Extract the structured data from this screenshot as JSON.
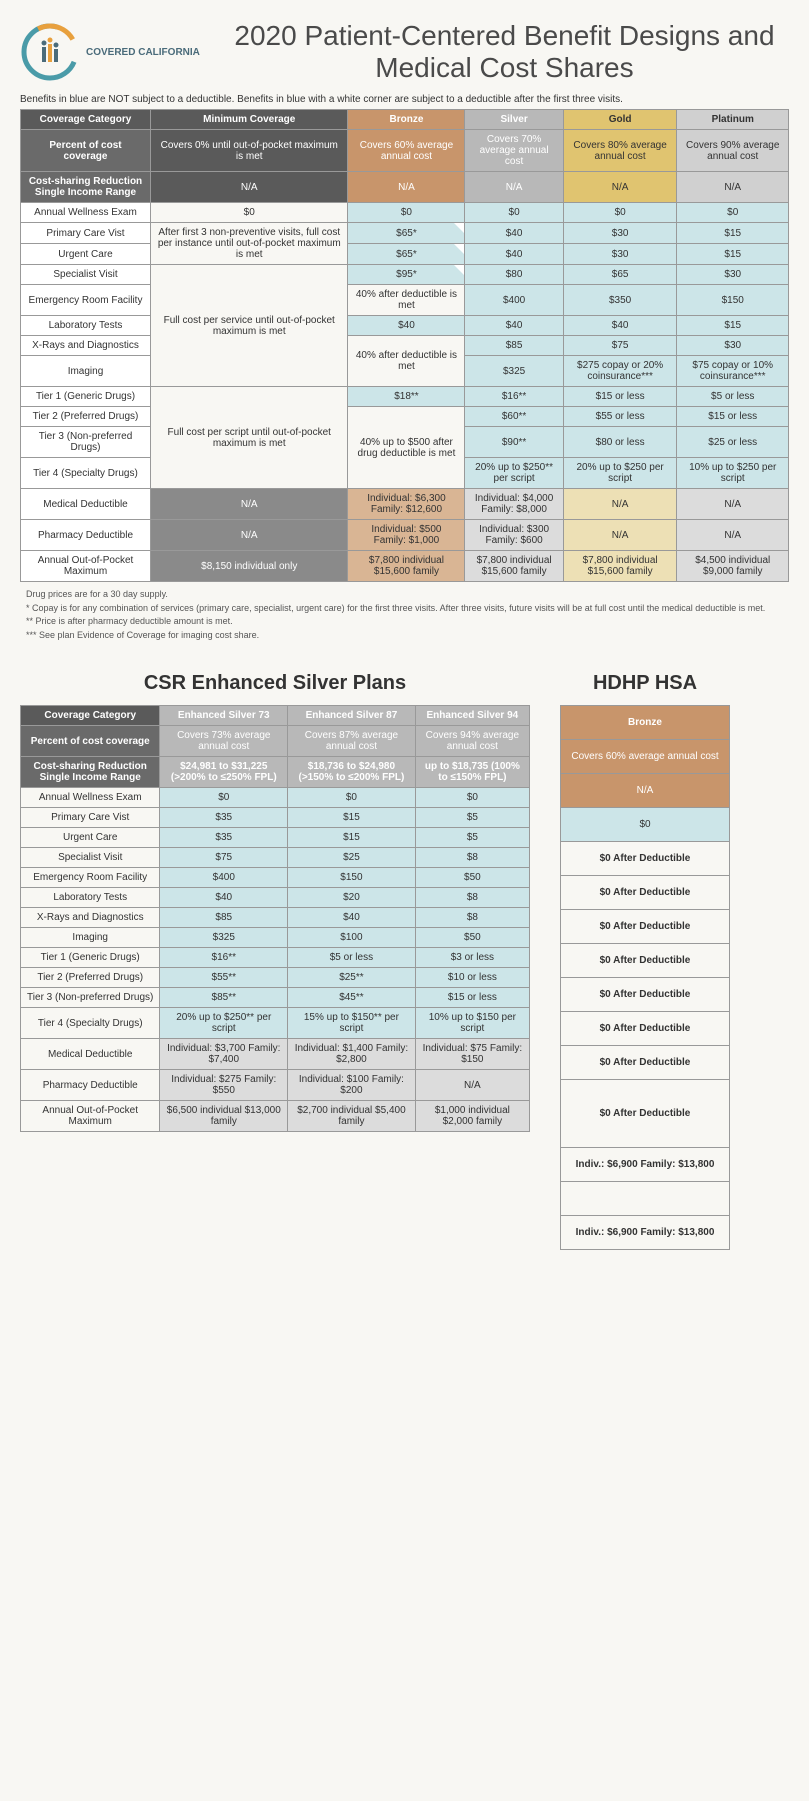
{
  "title": "2020 Patient-Centered Benefit Designs and Medical Cost Shares",
  "logo_label": "COVERED CALIFORNIA",
  "disclaimer": "Benefits in blue are NOT subject to a deductible. Benefits in blue with a white corner are subject to a deductible after the first three visits.",
  "main": {
    "headers": [
      "Coverage Category",
      "Minimum Coverage",
      "Bronze",
      "Silver",
      "Gold",
      "Platinum"
    ],
    "pct_label": "Percent of cost coverage",
    "pct": [
      "Covers 0% until out-of-pocket maximum is met",
      "Covers 60% average annual cost",
      "Covers 70% average annual cost",
      "Covers 80% average annual cost",
      "Covers 90% average annual cost"
    ],
    "csr_label": "Cost-sharing Reduction Single Income Range",
    "csr": [
      "N/A",
      "N/A",
      "N/A",
      "N/A",
      "N/A"
    ],
    "rows": [
      {
        "label": "Annual Wellness Exam",
        "min": "$0",
        "b": "$0",
        "s": "$0",
        "g": "$0",
        "p": "$0",
        "b_blue": true,
        "s_blue": true,
        "g_blue": true,
        "p_blue": true
      },
      {
        "label": "Primary Care Vist",
        "min_rowspan": 2,
        "min": "After first 3 non-preventive visits, full cost per instance until out-of-pocket maximum is met",
        "b": "$65*",
        "s": "$40",
        "g": "$30",
        "p": "$15",
        "b_blue": true,
        "b_corner": true,
        "s_blue": true,
        "g_blue": true,
        "p_blue": true
      },
      {
        "label": "Urgent Care",
        "b": "$65*",
        "s": "$40",
        "g": "$30",
        "p": "$15",
        "b_blue": true,
        "b_corner": true,
        "s_blue": true,
        "g_blue": true,
        "p_blue": true
      },
      {
        "label": "Specialist Visit",
        "min_rowspan": 5,
        "min": "Full cost per service until out-of-pocket maximum is met",
        "b": "$95*",
        "s": "$80",
        "g": "$65",
        "p": "$30",
        "b_blue": true,
        "b_corner": true,
        "s_blue": true,
        "g_blue": true,
        "p_blue": true
      },
      {
        "label": "Emergency Room Facility",
        "b_rowspan": 1,
        "b": "40% after deductible is met",
        "s": "$400",
        "g": "$350",
        "p": "$150",
        "s_blue": true,
        "g_blue": true,
        "p_blue": true
      },
      {
        "label": "Laboratory Tests",
        "b": "$40",
        "s": "$40",
        "g": "$40",
        "p": "$15",
        "b_blue": true,
        "s_blue": true,
        "g_blue": true,
        "p_blue": true
      },
      {
        "label": "X-Rays and Diagnostics",
        "b_rowspan": 2,
        "b": "40% after deductible is met",
        "s": "$85",
        "g": "$75",
        "p": "$30",
        "s_blue": true,
        "g_blue": true,
        "p_blue": true
      },
      {
        "label": "Imaging",
        "s": "$325",
        "g": "$275 copay or 20% coinsurance***",
        "p": "$75 copay or 10% coinsurance***",
        "s_blue": true,
        "g_blue": true,
        "p_blue": true
      },
      {
        "label": "Tier 1 (Generic Drugs)",
        "min_rowspan": 4,
        "min": "Full cost per script until out-of-pocket maximum is met",
        "b": "$18**",
        "s": "$16**",
        "g": "$15 or less",
        "p": "$5 or less",
        "b_blue": true,
        "s_blue": true,
        "g_blue": true,
        "p_blue": true
      },
      {
        "label": "Tier 2 (Preferred Drugs)",
        "b_rowspan": 3,
        "b": "40% up to $500 after drug deductible is met",
        "s": "$60**",
        "g": "$55 or less",
        "p": "$15 or less",
        "s_blue": true,
        "g_blue": true,
        "p_blue": true
      },
      {
        "label": "Tier 3 (Non-preferred Drugs)",
        "s": "$90**",
        "g": "$80 or less",
        "p": "$25 or less",
        "s_blue": true,
        "g_blue": true,
        "p_blue": true
      },
      {
        "label": "Tier 4 (Specialty Drugs)",
        "s": "20% up to $250** per script",
        "g": "20% up to $250 per script",
        "p": "10% up to $250 per script",
        "s_blue": true,
        "g_blue": true,
        "p_blue": true
      },
      {
        "label": "Medical Deductible",
        "min": "N/A",
        "min_gray": true,
        "b": "Individual: $6,300 Family: $12,600",
        "s": "Individual: $4,000 Family: $8,000",
        "g": "N/A",
        "p": "N/A",
        "b_bronze": true,
        "s_silver": true,
        "g_gold": true,
        "p_silver": true
      },
      {
        "label": "Pharmacy Deductible",
        "min": "N/A",
        "min_gray": true,
        "b": "Individual: $500 Family: $1,000",
        "s": "Individual: $300 Family: $600",
        "g": "N/A",
        "p": "N/A",
        "b_bronze": true,
        "s_silver": true,
        "g_gold": true,
        "p_silver": true
      },
      {
        "label": "Annual Out-of-Pocket Maximum",
        "min": "$8,150 individual only",
        "min_gray": true,
        "b": "$7,800 individual $15,600 family",
        "s": "$7,800 individual $15,600 family",
        "g": "$7,800 individual $15,600 family",
        "p": "$4,500 individual $9,000 family",
        "b_bronze": true,
        "s_silver": true,
        "g_gold": true,
        "p_silver": true
      }
    ]
  },
  "footnotes": [
    "Drug prices are for a 30 day supply.",
    "* Copay is for any combination of services (primary care, specialist, urgent care) for the first three visits. After three visits, future visits will be at full cost until the medical deductible is met.",
    "** Price is after pharmacy deductible amount is met.",
    "*** See plan Evidence of Coverage for imaging cost share."
  ],
  "csr": {
    "title": "CSR Enhanced Silver Plans",
    "headers": [
      "Coverage Category",
      "Enhanced Silver 73",
      "Enhanced Silver 87",
      "Enhanced Silver 94"
    ],
    "pct_label": "Percent of cost coverage",
    "pct": [
      "Covers 73% average annual cost",
      "Covers 87% average annual cost",
      "Covers 94% average annual cost"
    ],
    "csr_label": "Cost-sharing Reduction Single Income Range",
    "csr_vals": [
      "$24,981 to $31,225 (>200% to ≤250% FPL)",
      "$18,736 to $24,980 (>150% to ≤200% FPL)",
      "up to $18,735 (100% to ≤150% FPL)"
    ],
    "rows": [
      {
        "label": "Annual Wellness Exam",
        "c": [
          "$0",
          "$0",
          "$0"
        ],
        "blue": [
          true,
          true,
          true
        ]
      },
      {
        "label": "Primary Care Vist",
        "c": [
          "$35",
          "$15",
          "$5"
        ],
        "blue": [
          true,
          true,
          true
        ]
      },
      {
        "label": "Urgent Care",
        "c": [
          "$35",
          "$15",
          "$5"
        ],
        "blue": [
          true,
          true,
          true
        ]
      },
      {
        "label": "Specialist Visit",
        "c": [
          "$75",
          "$25",
          "$8"
        ],
        "blue": [
          true,
          true,
          true
        ]
      },
      {
        "label": "Emergency Room Facility",
        "c": [
          "$400",
          "$150",
          "$50"
        ],
        "blue": [
          true,
          true,
          true
        ]
      },
      {
        "label": "Laboratory Tests",
        "c": [
          "$40",
          "$20",
          "$8"
        ],
        "blue": [
          true,
          true,
          true
        ]
      },
      {
        "label": "X-Rays and Diagnostics",
        "c": [
          "$85",
          "$40",
          "$8"
        ],
        "blue": [
          true,
          true,
          true
        ]
      },
      {
        "label": "Imaging",
        "c": [
          "$325",
          "$100",
          "$50"
        ],
        "blue": [
          true,
          true,
          true
        ]
      },
      {
        "label": "Tier 1 (Generic Drugs)",
        "c": [
          "$16**",
          "$5 or less",
          "$3 or less"
        ],
        "blue": [
          true,
          true,
          true
        ]
      },
      {
        "label": "Tier 2 (Preferred Drugs)",
        "c": [
          "$55**",
          "$25**",
          "$10 or less"
        ],
        "blue": [
          true,
          true,
          true
        ]
      },
      {
        "label": "Tier 3 (Non-preferred Drugs)",
        "c": [
          "$85**",
          "$45**",
          "$15 or less"
        ],
        "blue": [
          true,
          true,
          true
        ]
      },
      {
        "label": "Tier 4 (Specialty Drugs)",
        "c": [
          "20% up to $250** per script",
          "15% up to $150** per script",
          "10% up to $150 per script"
        ],
        "blue": [
          true,
          true,
          true
        ]
      },
      {
        "label": "Medical Deductible",
        "c": [
          "Individual: $3,700 Family: $7,400",
          "Individual: $1,400 Family: $2,800",
          "Individual: $75 Family: $150"
        ],
        "silver": true
      },
      {
        "label": "Pharmacy Deductible",
        "c": [
          "Individual: $275 Family: $550",
          "Individual: $100 Family: $200",
          "N/A"
        ],
        "silver": true
      },
      {
        "label": "Annual Out-of-Pocket Maximum",
        "c": [
          "$6,500 individual $13,000 family",
          "$2,700 individual $5,400 family",
          "$1,000 individual $2,000 family"
        ],
        "silver": true
      }
    ]
  },
  "hsa": {
    "title": "HDHP HSA",
    "header": "Bronze",
    "pct": "Covers 60% average annual cost",
    "csr": "N/A",
    "rows": [
      {
        "v": "$0",
        "blue": true
      },
      {
        "v": "$0 After Deductible",
        "bold": true
      },
      {
        "v": "$0 After Deductible",
        "bold": true
      },
      {
        "v": "$0 After Deductible",
        "bold": true
      },
      {
        "v": "$0 After Deductible",
        "bold": true
      },
      {
        "v": "$0 After Deductible",
        "bold": true
      },
      {
        "v": "$0 After Deductible",
        "rowspan": 2,
        "bold": true
      },
      {
        "v": "$0 After Deductible",
        "bold": true
      },
      {
        "v": "$0 After Deductible",
        "rowspan": 3,
        "bold": true
      },
      {
        "v": "Indiv.: $6,900 Family: $13,800",
        "bold": true
      },
      {
        "v": "",
        "blank": true
      },
      {
        "v": "Indiv.: $6,900 Family: $13,800",
        "bold": true
      }
    ]
  }
}
